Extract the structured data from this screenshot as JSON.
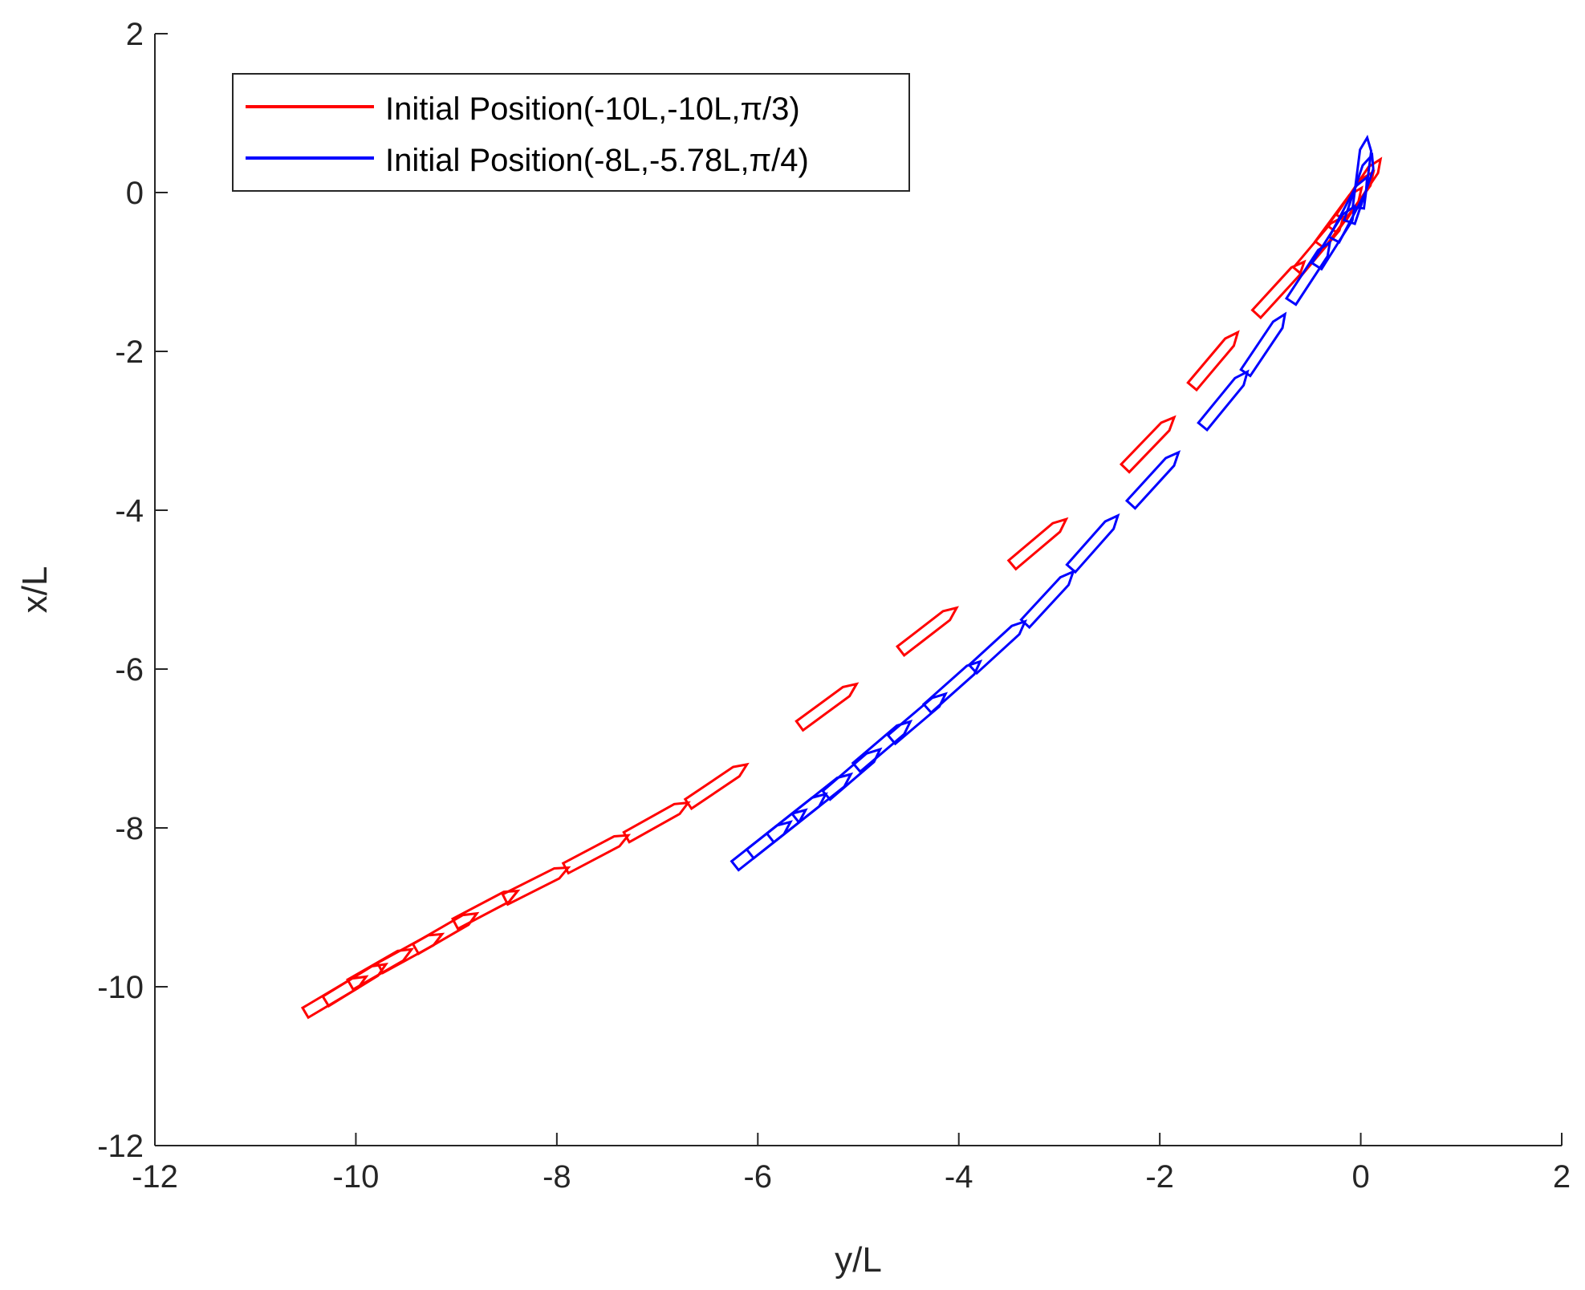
{
  "chart_data": {
    "type": "line",
    "title": "",
    "xlabel": "y/L",
    "ylabel": "x/L",
    "xlim": [
      -12,
      2
    ],
    "ylim": [
      -12,
      2
    ],
    "xticks": [
      -12,
      -10,
      -8,
      -6,
      -4,
      -2,
      0,
      2
    ],
    "yticks": [
      -12,
      -10,
      -8,
      -6,
      -4,
      -2,
      0,
      2
    ],
    "grid": false,
    "legend_position": "top-left",
    "series": [
      {
        "name": "Initial Position(-10L,-10L,π/3)",
        "color": "#ff0000",
        "marker": "ship-outline",
        "x": [
          -10.2,
          -10.0,
          -9.75,
          -9.45,
          -9.1,
          -8.7,
          -8.2,
          -7.6,
          -7.0,
          -6.4,
          -5.3,
          -4.3,
          -3.2,
          -2.1,
          -1.45,
          -0.8,
          -0.4,
          -0.2,
          -0.08,
          0.0
        ],
        "y": [
          -10.1,
          -9.95,
          -9.75,
          -9.55,
          -9.3,
          -9.0,
          -8.7,
          -8.3,
          -7.9,
          -7.45,
          -6.45,
          -5.5,
          -4.4,
          -3.15,
          -2.1,
          -1.2,
          -0.65,
          -0.3,
          -0.1,
          0.05
        ]
      },
      {
        "name": "Initial Position(-8L,-5.78L,π/4)",
        "color": "#0000ff",
        "marker": "ship-outline",
        "x": [
          -5.95,
          -5.8,
          -5.6,
          -5.35,
          -5.05,
          -4.75,
          -4.4,
          -4.05,
          -3.6,
          -3.1,
          -2.65,
          -2.05,
          -1.35,
          -0.95,
          -0.5,
          -0.25,
          -0.1,
          0.0,
          0.02
        ],
        "y": [
          -8.2,
          -8.05,
          -7.85,
          -7.6,
          -7.3,
          -6.95,
          -6.6,
          -6.2,
          -5.7,
          -5.1,
          -4.4,
          -3.6,
          -2.6,
          -1.9,
          -1.0,
          -0.55,
          -0.2,
          0.05,
          0.25
        ]
      }
    ]
  }
}
